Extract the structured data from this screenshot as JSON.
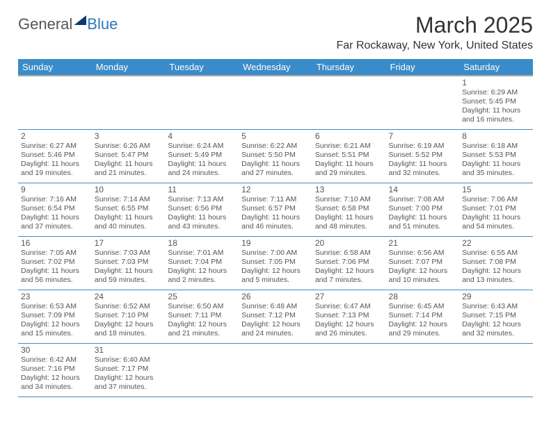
{
  "logo": {
    "part1": "General",
    "part2": "Blue"
  },
  "title": "March 2025",
  "location": "Far Rockaway, New York, United States",
  "header_bg": "#3a8bc9",
  "header_fg": "#ffffff",
  "border_color": "#3a8bc9",
  "text_color": "#555555",
  "day_names": [
    "Sunday",
    "Monday",
    "Tuesday",
    "Wednesday",
    "Thursday",
    "Friday",
    "Saturday"
  ],
  "weeks": [
    [
      null,
      null,
      null,
      null,
      null,
      null,
      {
        "n": "1",
        "sr": "6:29 AM",
        "ss": "5:45 PM",
        "dl": "11 hours and 16 minutes."
      }
    ],
    [
      {
        "n": "2",
        "sr": "6:27 AM",
        "ss": "5:46 PM",
        "dl": "11 hours and 19 minutes."
      },
      {
        "n": "3",
        "sr": "6:26 AM",
        "ss": "5:47 PM",
        "dl": "11 hours and 21 minutes."
      },
      {
        "n": "4",
        "sr": "6:24 AM",
        "ss": "5:49 PM",
        "dl": "11 hours and 24 minutes."
      },
      {
        "n": "5",
        "sr": "6:22 AM",
        "ss": "5:50 PM",
        "dl": "11 hours and 27 minutes."
      },
      {
        "n": "6",
        "sr": "6:21 AM",
        "ss": "5:51 PM",
        "dl": "11 hours and 29 minutes."
      },
      {
        "n": "7",
        "sr": "6:19 AM",
        "ss": "5:52 PM",
        "dl": "11 hours and 32 minutes."
      },
      {
        "n": "8",
        "sr": "6:18 AM",
        "ss": "5:53 PM",
        "dl": "11 hours and 35 minutes."
      }
    ],
    [
      {
        "n": "9",
        "sr": "7:16 AM",
        "ss": "6:54 PM",
        "dl": "11 hours and 37 minutes."
      },
      {
        "n": "10",
        "sr": "7:14 AM",
        "ss": "6:55 PM",
        "dl": "11 hours and 40 minutes."
      },
      {
        "n": "11",
        "sr": "7:13 AM",
        "ss": "6:56 PM",
        "dl": "11 hours and 43 minutes."
      },
      {
        "n": "12",
        "sr": "7:11 AM",
        "ss": "6:57 PM",
        "dl": "11 hours and 46 minutes."
      },
      {
        "n": "13",
        "sr": "7:10 AM",
        "ss": "6:58 PM",
        "dl": "11 hours and 48 minutes."
      },
      {
        "n": "14",
        "sr": "7:08 AM",
        "ss": "7:00 PM",
        "dl": "11 hours and 51 minutes."
      },
      {
        "n": "15",
        "sr": "7:06 AM",
        "ss": "7:01 PM",
        "dl": "11 hours and 54 minutes."
      }
    ],
    [
      {
        "n": "16",
        "sr": "7:05 AM",
        "ss": "7:02 PM",
        "dl": "11 hours and 56 minutes."
      },
      {
        "n": "17",
        "sr": "7:03 AM",
        "ss": "7:03 PM",
        "dl": "11 hours and 59 minutes."
      },
      {
        "n": "18",
        "sr": "7:01 AM",
        "ss": "7:04 PM",
        "dl": "12 hours and 2 minutes."
      },
      {
        "n": "19",
        "sr": "7:00 AM",
        "ss": "7:05 PM",
        "dl": "12 hours and 5 minutes."
      },
      {
        "n": "20",
        "sr": "6:58 AM",
        "ss": "7:06 PM",
        "dl": "12 hours and 7 minutes."
      },
      {
        "n": "21",
        "sr": "6:56 AM",
        "ss": "7:07 PM",
        "dl": "12 hours and 10 minutes."
      },
      {
        "n": "22",
        "sr": "6:55 AM",
        "ss": "7:08 PM",
        "dl": "12 hours and 13 minutes."
      }
    ],
    [
      {
        "n": "23",
        "sr": "6:53 AM",
        "ss": "7:09 PM",
        "dl": "12 hours and 15 minutes."
      },
      {
        "n": "24",
        "sr": "6:52 AM",
        "ss": "7:10 PM",
        "dl": "12 hours and 18 minutes."
      },
      {
        "n": "25",
        "sr": "6:50 AM",
        "ss": "7:11 PM",
        "dl": "12 hours and 21 minutes."
      },
      {
        "n": "26",
        "sr": "6:48 AM",
        "ss": "7:12 PM",
        "dl": "12 hours and 24 minutes."
      },
      {
        "n": "27",
        "sr": "6:47 AM",
        "ss": "7:13 PM",
        "dl": "12 hours and 26 minutes."
      },
      {
        "n": "28",
        "sr": "6:45 AM",
        "ss": "7:14 PM",
        "dl": "12 hours and 29 minutes."
      },
      {
        "n": "29",
        "sr": "6:43 AM",
        "ss": "7:15 PM",
        "dl": "12 hours and 32 minutes."
      }
    ],
    [
      {
        "n": "30",
        "sr": "6:42 AM",
        "ss": "7:16 PM",
        "dl": "12 hours and 34 minutes."
      },
      {
        "n": "31",
        "sr": "6:40 AM",
        "ss": "7:17 PM",
        "dl": "12 hours and 37 minutes."
      },
      null,
      null,
      null,
      null,
      null
    ]
  ],
  "labels": {
    "sunrise": "Sunrise:",
    "sunset": "Sunset:",
    "daylight": "Daylight:"
  }
}
